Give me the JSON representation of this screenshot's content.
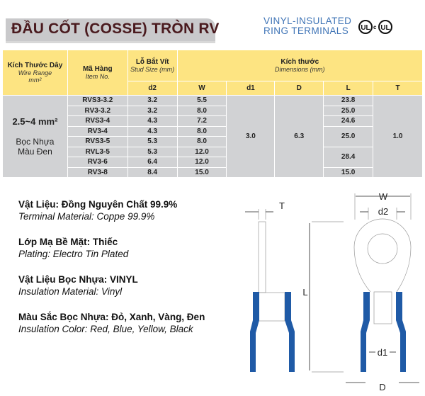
{
  "header": {
    "title": "ĐẦU CỐT (COSSE)  TRÒN RV",
    "subtitle_line1": "VINYL-INSULATED",
    "subtitle_line2": "RING TERMINALS",
    "cert_ul": "UL",
    "cert_cul_prefix": "c",
    "cert_cul": "UL"
  },
  "table": {
    "col_wire": {
      "vn": "Kích Thước Dây",
      "en": "Wire Range",
      "unit": "mm²"
    },
    "col_item": {
      "vn": "Mã Hàng",
      "en": "Item No."
    },
    "col_stud": {
      "vn": "Lỗ Bắt Vít",
      "en": "Stud Size  (mm)"
    },
    "col_dims": {
      "vn": "Kích thước",
      "en": "Dimensions  (mm)"
    },
    "sub": [
      "d2",
      "W",
      "d1",
      "D",
      "L",
      "T"
    ],
    "wire_range": "2.5~4 mm²",
    "wire_note_1": "Bọc Nhựa",
    "wire_note_2": "Màu Đen",
    "rows": [
      {
        "item": "RVS3-3.2",
        "d2": "3.2",
        "W": "5.5",
        "L": "23.8"
      },
      {
        "item": "RV3-3.2",
        "d2": "3.2",
        "W": "8.0",
        "L": "25.0"
      },
      {
        "item": "RVS3-4",
        "d2": "4.3",
        "W": "7.2",
        "L": "24.6"
      },
      {
        "item": "RV3-4",
        "d2": "4.3",
        "W": "8.0",
        "L": "25.0"
      },
      {
        "item": "RVS3-5",
        "d2": "5.3",
        "W": "8.0"
      },
      {
        "item": "RVL3-5",
        "d2": "5.3",
        "W": "12.0",
        "L": "28.4"
      },
      {
        "item": "RV3-6",
        "d2": "6.4",
        "W": "12.0"
      },
      {
        "item": "RV3-8",
        "d2": "8.4",
        "W": "15.0",
        "L": "15.0"
      }
    ],
    "d1": "3.0",
    "D": "6.3",
    "T": "1.0"
  },
  "specs": [
    {
      "vn": "Vật Liệu:  Đồng Nguyên Chất 99.9%",
      "en": "Terminal Material: Coppe 99.9%"
    },
    {
      "vn": "Lớp Mạ Bề Mặt:  Thiếc",
      "en": "Plating: Electro Tin Plated"
    },
    {
      "vn": "Vật Liệu Bọc Nhựa:  VINYL",
      "en": "Insulation Material: Vinyl"
    },
    {
      "vn": "Màu Sắc Bọc Nhựa:  Đỏ, Xanh, Vàng, Đen",
      "en": "Insulation Color: Red, Blue, Yellow, Black"
    }
  ],
  "diagram": {
    "labels": {
      "T": "T",
      "L": "L",
      "W": "W",
      "d2": "d2",
      "d1": "d1",
      "D": "D"
    },
    "insulation_color": "#1f5aa6"
  }
}
